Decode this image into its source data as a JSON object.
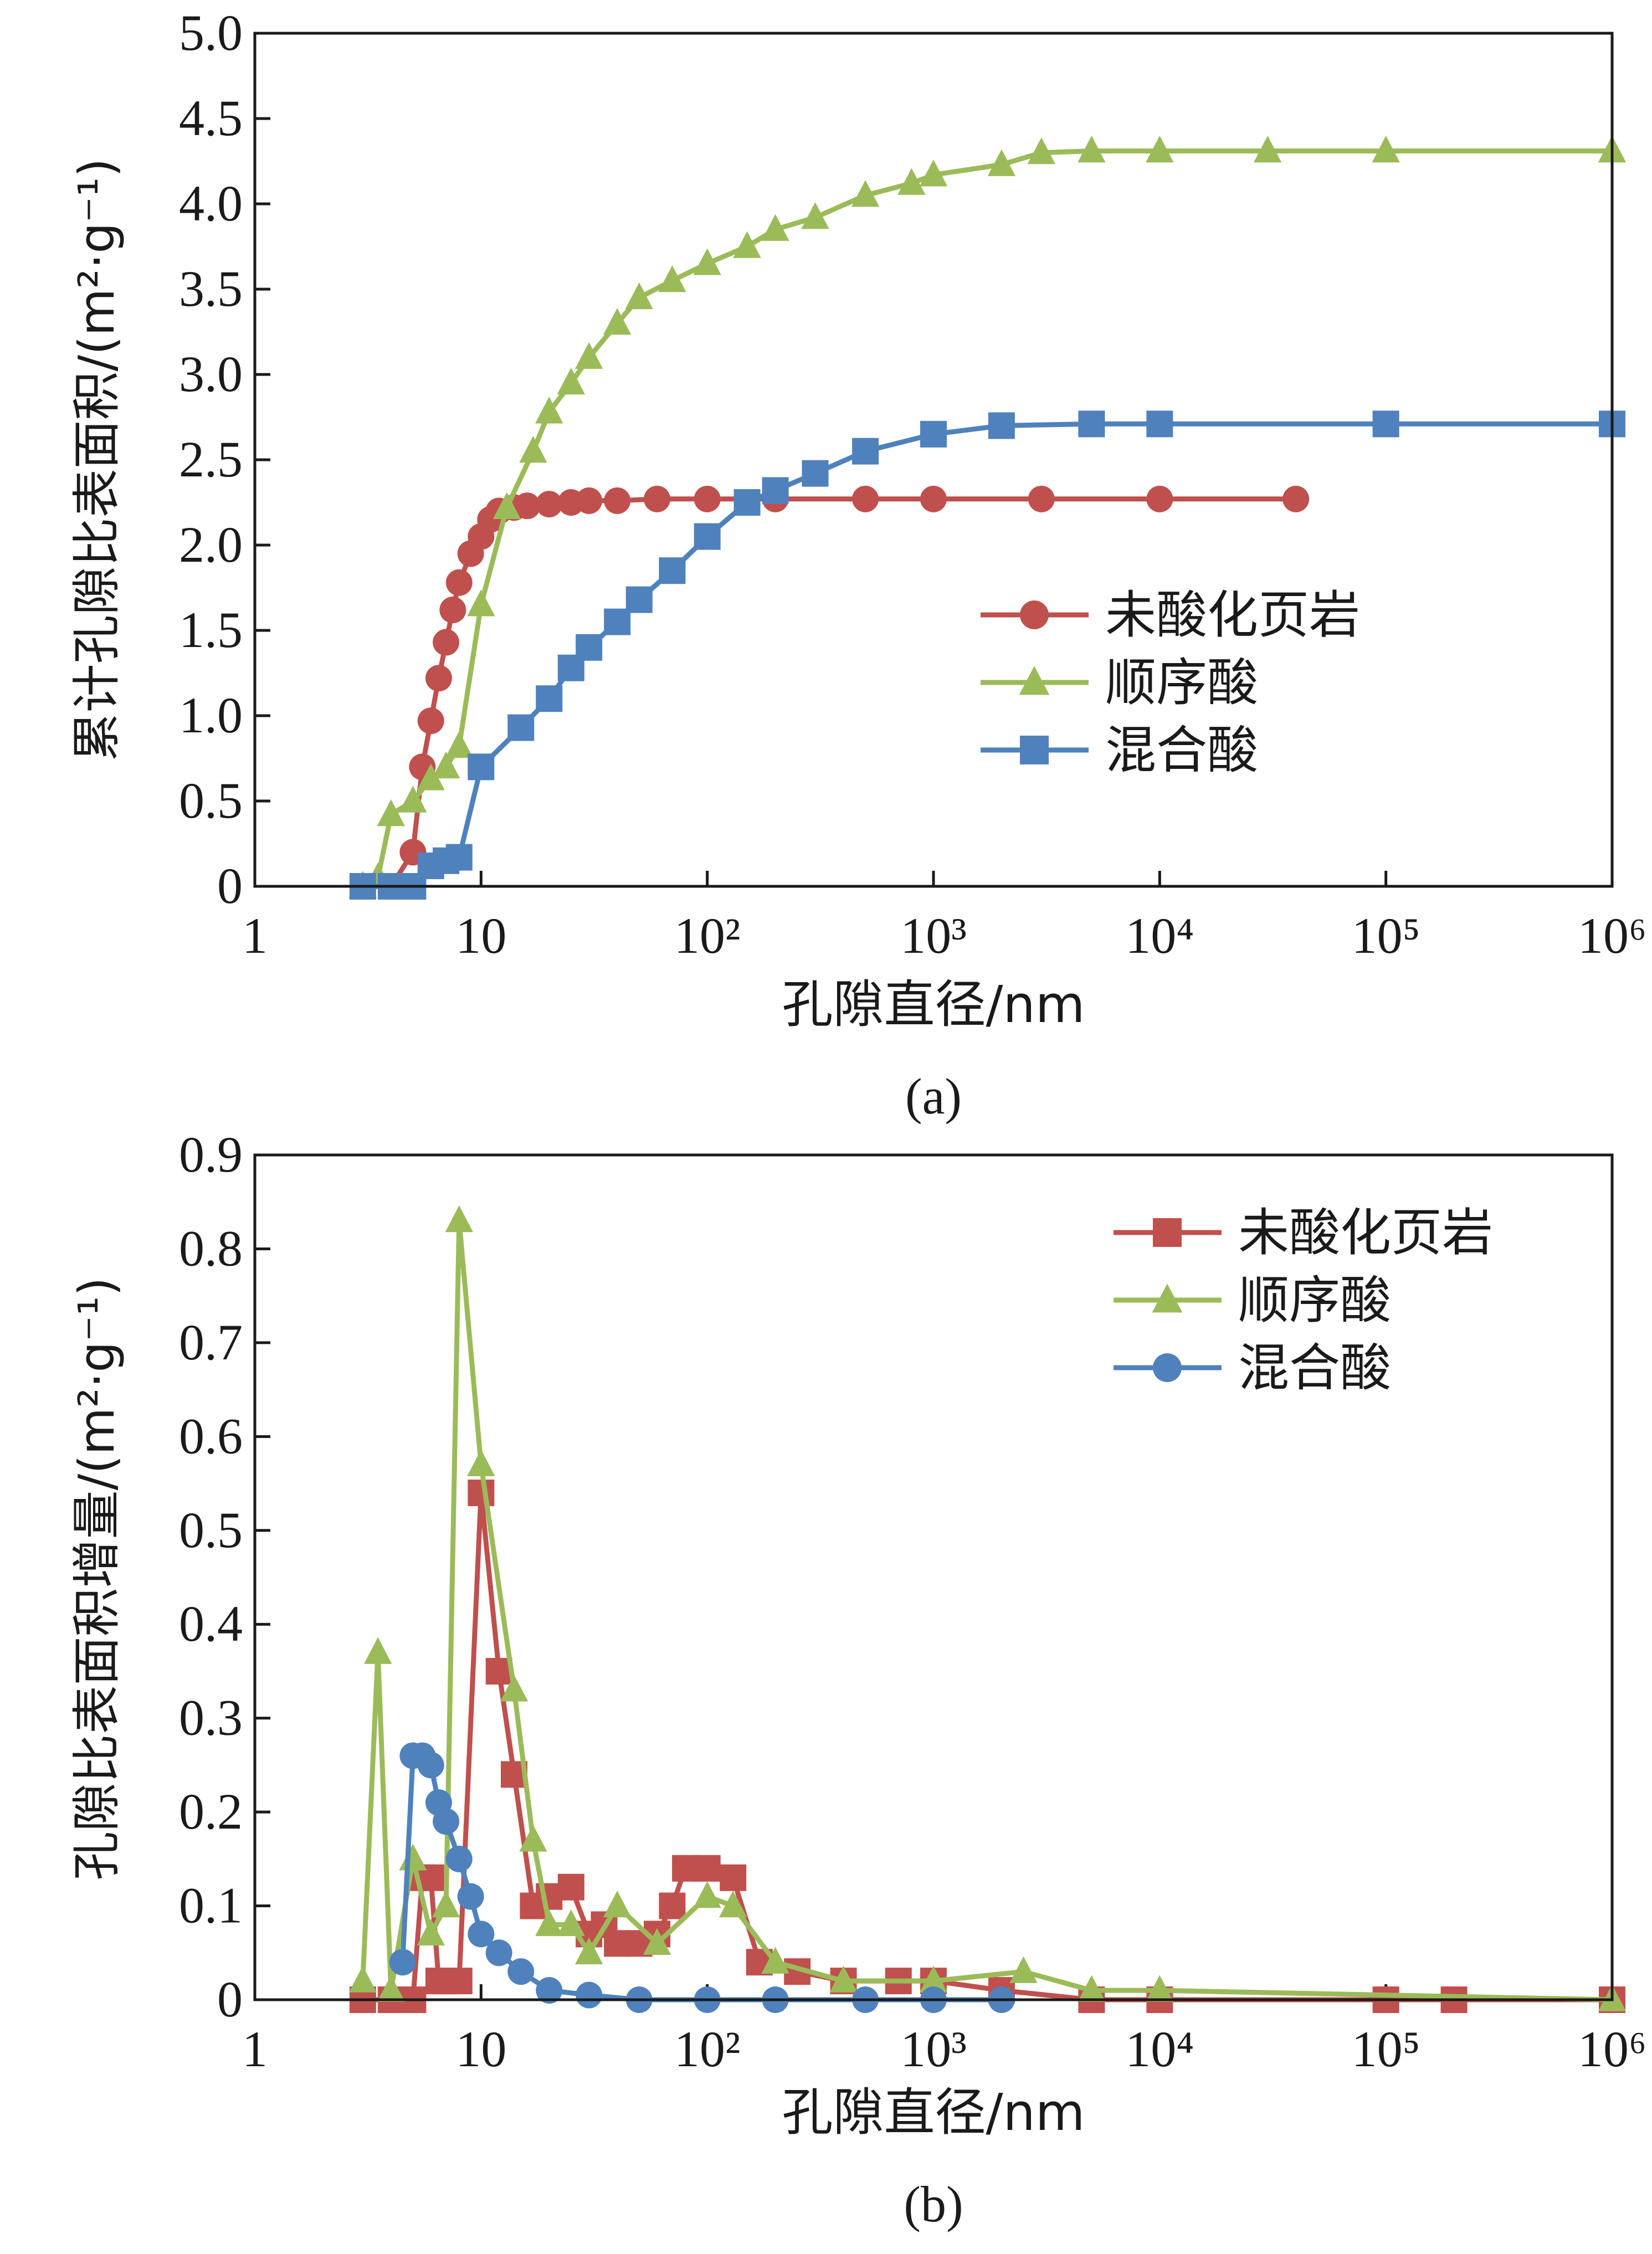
{
  "colors": {
    "unacidified": "#C0504D",
    "sequential": "#9BBB59",
    "mixed": "#4F81BD",
    "axis": "#1a1a1a"
  },
  "chart_data": [
    {
      "panel": "(a)",
      "type": "line",
      "xscale": "log",
      "xlim": [
        1,
        1000000
      ],
      "ylim": [
        0,
        5.0
      ],
      "xlabel": "孔隙直径/nm",
      "ylabel": "累计孔隙比表面积/(m²·g⁻¹)",
      "x_ticks": [
        "1",
        "10",
        "10²",
        "10³",
        "10⁴",
        "10⁵",
        "10⁶"
      ],
      "y_ticks": [
        "0",
        "0.5",
        "1.0",
        "1.5",
        "2.0",
        "2.5",
        "3.0",
        "3.5",
        "4.0",
        "4.5",
        "5.0"
      ],
      "legend_position": "right-middle",
      "series": [
        {
          "name": "未酸化页岩",
          "marker": "circle",
          "x": [
            3,
            4,
            5,
            5.5,
            6,
            6.5,
            7,
            7.5,
            8,
            9,
            10,
            11,
            12,
            14,
            16,
            20,
            25,
            30,
            40,
            60,
            100,
            200,
            500,
            1000,
            3000,
            10000,
            40000
          ],
          "y": [
            0,
            0,
            0.2,
            0.7,
            0.97,
            1.22,
            1.43,
            1.62,
            1.78,
            1.95,
            2.05,
            2.15,
            2.2,
            2.22,
            2.23,
            2.24,
            2.25,
            2.26,
            2.26,
            2.27,
            2.27,
            2.27,
            2.27,
            2.27,
            2.27,
            2.27,
            2.27
          ]
        },
        {
          "name": "顺序酸",
          "marker": "triangle",
          "x": [
            3,
            3.5,
            4,
            5,
            6,
            7,
            8,
            10,
            13,
            17,
            20,
            25,
            30,
            40,
            50,
            70,
            100,
            150,
            200,
            300,
            500,
            800,
            1000,
            2000,
            3000,
            5000,
            10000,
            30000,
            100000,
            1000000
          ],
          "y": [
            0,
            0.05,
            0.42,
            0.5,
            0.63,
            0.7,
            0.82,
            1.65,
            2.22,
            2.55,
            2.78,
            2.95,
            3.1,
            3.3,
            3.45,
            3.55,
            3.65,
            3.75,
            3.85,
            3.92,
            4.05,
            4.12,
            4.17,
            4.23,
            4.3,
            4.31,
            4.31,
            4.31,
            4.31,
            4.31
          ]
        },
        {
          "name": "混合酸",
          "marker": "square",
          "x": [
            3,
            4,
            5,
            6,
            7,
            8,
            10,
            15,
            20,
            25,
            30,
            40,
            50,
            70,
            100,
            150,
            200,
            300,
            500,
            1000,
            2000,
            5000,
            10000,
            100000,
            1000000
          ],
          "y": [
            0,
            0,
            0,
            0.12,
            0.15,
            0.17,
            0.7,
            0.93,
            1.1,
            1.28,
            1.4,
            1.55,
            1.68,
            1.85,
            2.05,
            2.25,
            2.32,
            2.42,
            2.55,
            2.65,
            2.7,
            2.71,
            2.71,
            2.71,
            2.71
          ]
        }
      ]
    },
    {
      "panel": "(b)",
      "type": "line",
      "xscale": "log",
      "xlim": [
        1,
        1000000
      ],
      "ylim": [
        0,
        0.9
      ],
      "xlabel": "孔隙直径/nm",
      "ylabel": "孔隙比表面积增量/(m²·g⁻¹)",
      "x_ticks": [
        "1",
        "10",
        "10²",
        "10³",
        "10⁴",
        "10⁵",
        "10⁶"
      ],
      "y_ticks": [
        "0",
        "0.1",
        "0.2",
        "0.3",
        "0.4",
        "0.5",
        "0.6",
        "0.7",
        "0.8",
        "0.9"
      ],
      "legend_position": "top-right",
      "series": [
        {
          "name": "未酸化页岩",
          "marker": "square",
          "x": [
            3,
            4,
            5,
            5.5,
            6,
            6.5,
            7,
            8,
            10,
            12,
            14,
            17,
            20,
            25,
            30,
            35,
            40,
            50,
            60,
            70,
            80,
            100,
            130,
            170,
            250,
            400,
            700,
            1000,
            2000,
            5000,
            10000,
            100000,
            200000,
            1000000
          ],
          "y": [
            0,
            0,
            0,
            0.13,
            0.13,
            0.02,
            0.02,
            0.02,
            0.54,
            0.35,
            0.24,
            0.1,
            0.11,
            0.12,
            0.07,
            0.08,
            0.06,
            0.06,
            0.07,
            0.1,
            0.14,
            0.14,
            0.13,
            0.04,
            0.03,
            0.02,
            0.02,
            0.02,
            0.01,
            0,
            0,
            0,
            0,
            0
          ]
        },
        {
          "name": "顺序酸",
          "marker": "triangle",
          "x": [
            3,
            3.5,
            4,
            5,
            6,
            7,
            8,
            10,
            14,
            17,
            20,
            25,
            30,
            40,
            60,
            100,
            130,
            200,
            400,
            1000,
            2500,
            5000,
            10000,
            1000000
          ],
          "y": [
            0.02,
            0.37,
            0.01,
            0.15,
            0.07,
            0.1,
            0.83,
            0.57,
            0.33,
            0.17,
            0.08,
            0.08,
            0.05,
            0.1,
            0.06,
            0.11,
            0.1,
            0.04,
            0.02,
            0.02,
            0.03,
            0.01,
            0.01,
            0
          ]
        },
        {
          "name": "混合酸",
          "marker": "circle",
          "x": [
            4.5,
            5,
            5.5,
            6,
            6.5,
            7,
            8,
            9,
            10,
            12,
            15,
            20,
            30,
            50,
            100,
            200,
            500,
            1000,
            2000
          ],
          "y": [
            0.04,
            0.26,
            0.26,
            0.25,
            0.21,
            0.19,
            0.15,
            0.11,
            0.07,
            0.05,
            0.03,
            0.01,
            0.005,
            0,
            0,
            0,
            0,
            0,
            0
          ]
        }
      ]
    }
  ]
}
